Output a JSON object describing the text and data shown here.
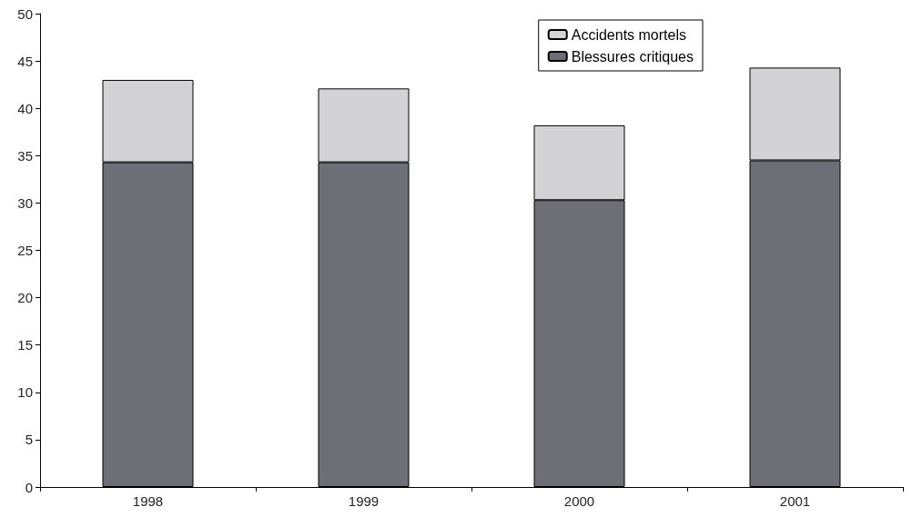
{
  "chart_data": {
    "type": "bar",
    "stacked": true,
    "categories": [
      "1998",
      "1999",
      "2000",
      "2001"
    ],
    "series": [
      {
        "name": "Blessures critiques",
        "color": "#6e6e76",
        "values": [
          34.3,
          34.3,
          30.3,
          34.5
        ]
      },
      {
        "name": "Accidents mortels",
        "color": "#d3d3d5",
        "values": [
          8.7,
          7.8,
          7.9,
          9.8
        ]
      }
    ],
    "ylim": [
      0,
      50
    ],
    "yticks": [
      0,
      5,
      10,
      15,
      20,
      25,
      30,
      35,
      40,
      45,
      50
    ],
    "grid": false,
    "legend": "top right"
  }
}
